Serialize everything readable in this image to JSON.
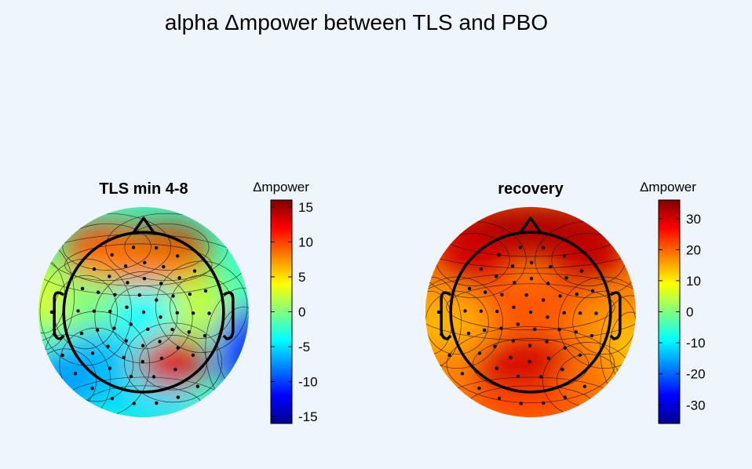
{
  "figure": {
    "title": "alpha Δmpower between TLS and PBO"
  },
  "colormap": [
    "#00008f",
    "#0000ff",
    "#0080ff",
    "#00ffff",
    "#80ff80",
    "#ffff00",
    "#ff8000",
    "#ff0000",
    "#800000"
  ],
  "chart_data": [
    {
      "type": "heatmap",
      "title": "TLS min 4-8",
      "colorbar_label": "Δmpower",
      "clim": [
        -16,
        16
      ],
      "colorbar_ticks": [
        15,
        10,
        5,
        0,
        -5,
        -10,
        -15
      ],
      "regions": [
        {
          "name": "frontal-left",
          "value": 11
        },
        {
          "name": "frontal-right",
          "value": 14
        },
        {
          "name": "frontal-mid",
          "value": 8
        },
        {
          "name": "central",
          "value": -4
        },
        {
          "name": "left-temporal",
          "value": 0
        },
        {
          "name": "right-temporal",
          "value": 2
        },
        {
          "name": "parietal-right",
          "value": 13
        },
        {
          "name": "posterior-left",
          "value": -6
        },
        {
          "name": "occipital",
          "value": -5
        },
        {
          "name": "right-edge",
          "value": -10
        },
        {
          "name": "left-edge",
          "value": 3
        },
        {
          "name": "left-lower",
          "value": -7
        }
      ]
    },
    {
      "type": "heatmap",
      "title": "recovery",
      "colorbar_label": "Δmpower",
      "clim": [
        -36,
        36
      ],
      "colorbar_ticks": [
        30,
        20,
        10,
        0,
        -10,
        -20,
        -30
      ],
      "regions": [
        {
          "name": "frontal",
          "value": 33
        },
        {
          "name": "frontal-left",
          "value": 30
        },
        {
          "name": "frontal-right",
          "value": 31
        },
        {
          "name": "central",
          "value": 21
        },
        {
          "name": "left-temporal",
          "value": 15
        },
        {
          "name": "right-temporal",
          "value": 17
        },
        {
          "name": "parietal",
          "value": 30
        },
        {
          "name": "occipital",
          "value": 22
        },
        {
          "name": "left-edge",
          "value": 14
        },
        {
          "name": "right-edge",
          "value": 13
        },
        {
          "name": "posterior-right",
          "value": 19
        }
      ]
    }
  ]
}
